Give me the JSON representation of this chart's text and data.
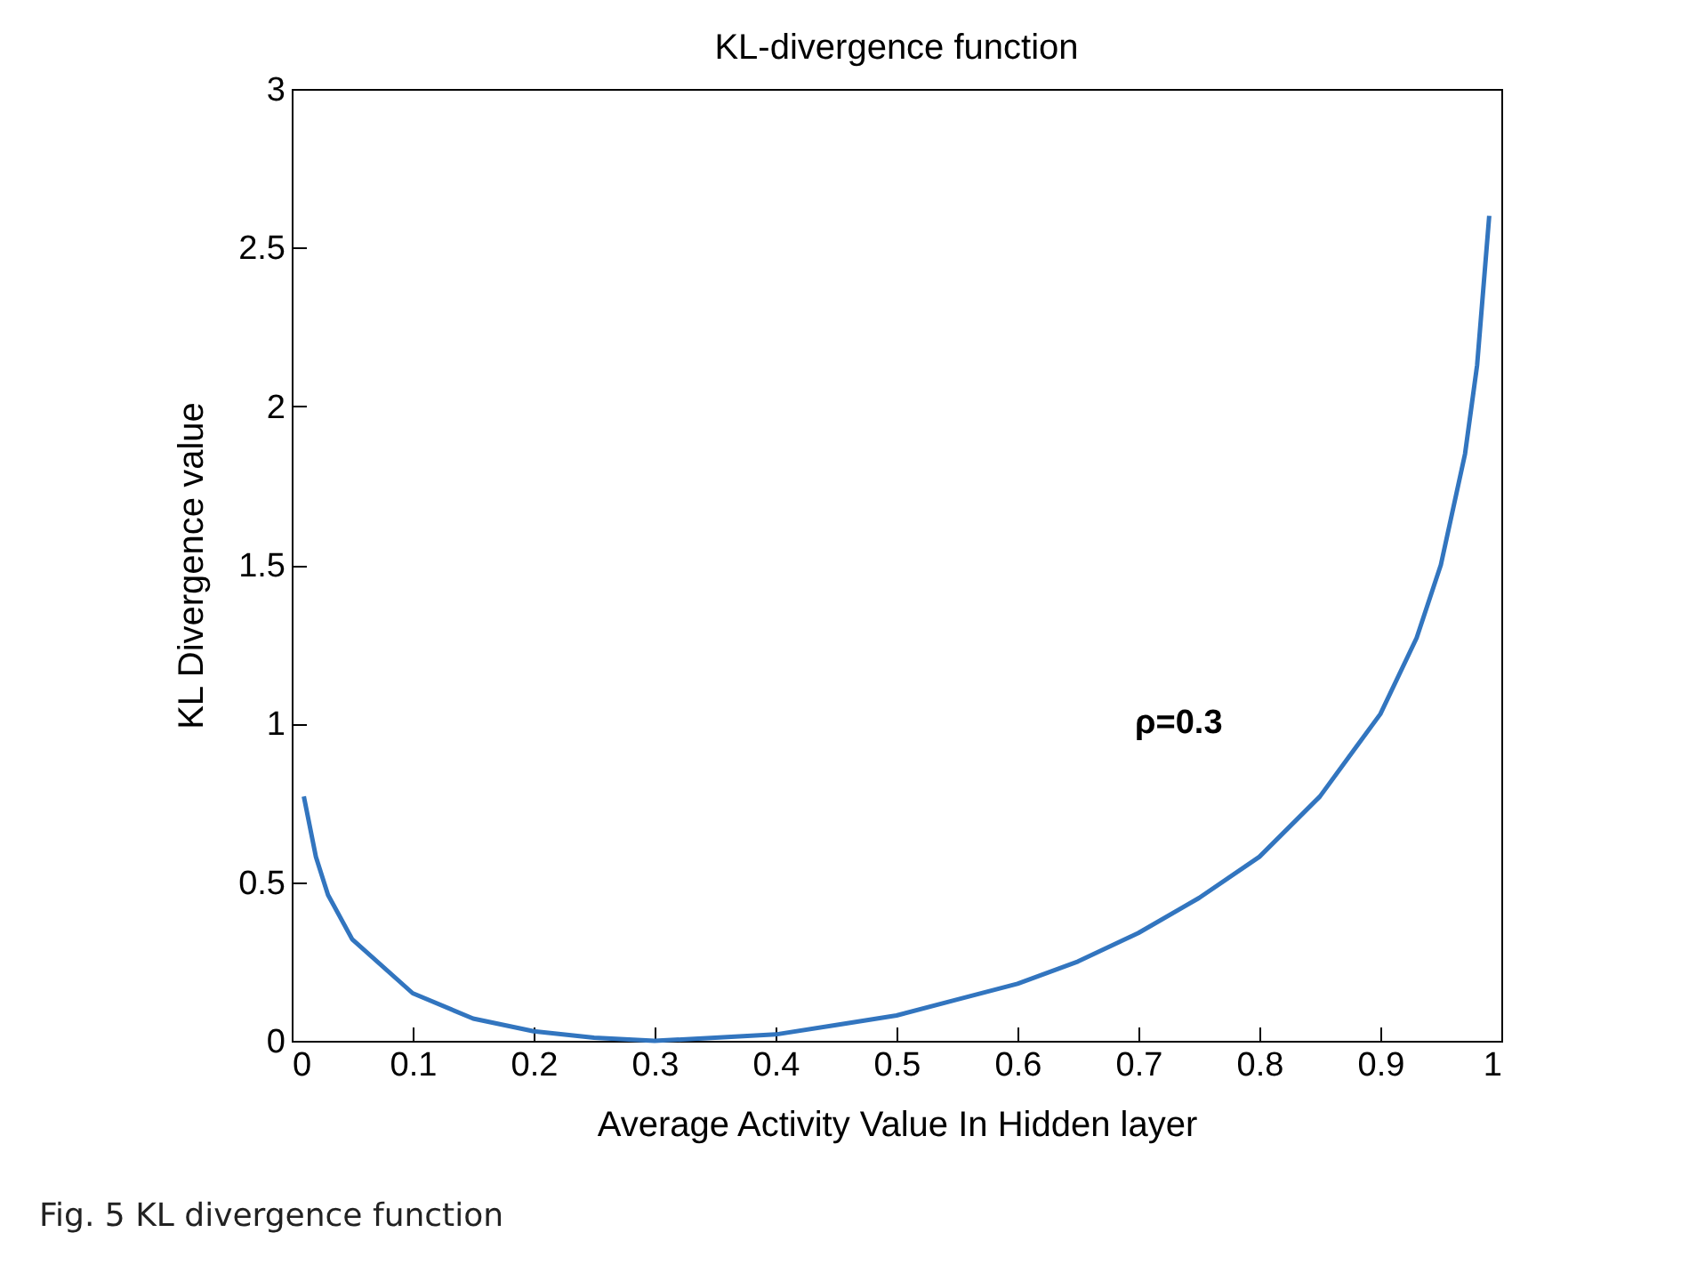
{
  "chart_data": {
    "type": "line",
    "title": "KL-divergence function",
    "xlabel": "Average Activity Value In Hidden layer",
    "ylabel": "KL Divergence value",
    "x": [
      0.01,
      0.02,
      0.03,
      0.05,
      0.1,
      0.15,
      0.2,
      0.25,
      0.3,
      0.35,
      0.4,
      0.45,
      0.5,
      0.55,
      0.6,
      0.65,
      0.7,
      0.75,
      0.8,
      0.85,
      0.9,
      0.93,
      0.95,
      0.97,
      0.98,
      0.99
    ],
    "series": [
      {
        "color": "#3275bf",
        "values": [
          0.77,
          0.58,
          0.46,
          0.32,
          0.15,
          0.07,
          0.03,
          0.01,
          0,
          0.01,
          0.02,
          0.05,
          0.08,
          0.13,
          0.18,
          0.25,
          0.34,
          0.45,
          0.58,
          0.77,
          1.03,
          1.27,
          1.5,
          1.85,
          2.13,
          2.6
        ]
      }
    ],
    "xlim": [
      0,
      1
    ],
    "xticks": [
      0,
      0.1,
      0.2,
      0.3,
      0.4,
      0.5,
      0.6,
      0.7,
      0.8,
      0.9,
      1
    ],
    "ylim": [
      0,
      3
    ],
    "yticks": [
      0,
      0.5,
      1,
      1.5,
      2,
      2.5,
      3
    ],
    "grid": false,
    "legend": false,
    "marker": "none",
    "line_style": "solid",
    "annotations": [
      "ρ=0.3",
      "Fig. 5 KL divergence function"
    ]
  }
}
